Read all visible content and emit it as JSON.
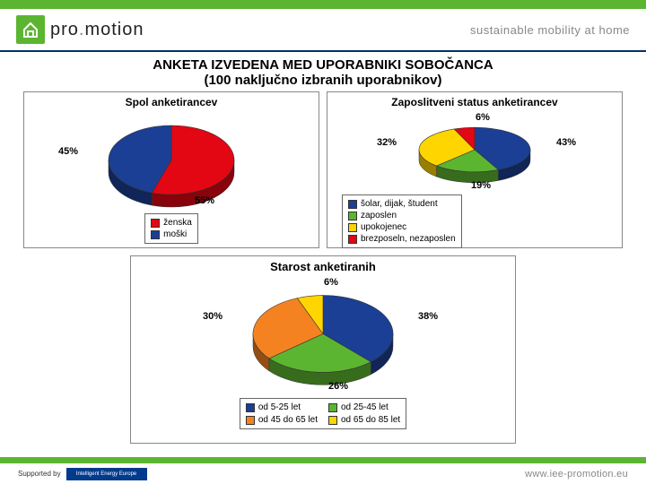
{
  "header": {
    "brand_pre": "pro",
    "brand_post": "motion",
    "tagline": "sustainable mobility at home",
    "logo_bg": "#5cb531"
  },
  "title": {
    "line1": "ANKETA IZVEDENA MED UPORABNIKI SOBOČANCA",
    "line2": "(100 naključno izbranih uporabnikov)"
  },
  "chart1": {
    "type": "pie",
    "title": "Spol anketirancev",
    "title_fontsize": 12,
    "background_color": "#ffffff",
    "slices": [
      {
        "label": "ženska",
        "value": 55,
        "color": "#e30613",
        "pct_label": "55%"
      },
      {
        "label": "moški",
        "value": 45,
        "color": "#1b3f94",
        "pct_label": "45%"
      }
    ],
    "tilt_ry_ratio": 0.55,
    "depth": 14,
    "radius": 70,
    "legend_border": "#666666"
  },
  "chart2": {
    "type": "pie",
    "title": "Zaposlitveni status anketirancev",
    "title_fontsize": 12,
    "background_color": "#ffffff",
    "slices": [
      {
        "label": "šolar, dijak, študent",
        "value": 43,
        "color": "#1b3f94",
        "pct_label": "43%"
      },
      {
        "label": "zaposlen",
        "value": 19,
        "color": "#5cb531",
        "pct_label": "19%"
      },
      {
        "label": "upokojenec",
        "value": 32,
        "color": "#ffd500",
        "pct_label": "32%"
      },
      {
        "label": "brezposeln, nezaposlen",
        "value": 6,
        "color": "#e30613",
        "pct_label": "6%"
      }
    ],
    "tilt_ry_ratio": 0.4,
    "depth": 12,
    "radius": 62,
    "legend_border": "#666666"
  },
  "chart3": {
    "type": "pie",
    "title": "Starost anketiranih",
    "title_fontsize": 13,
    "background_color": "#ffffff",
    "slices": [
      {
        "label": "od 5-25 let",
        "value": 38,
        "color": "#1b3f94",
        "pct_label": "38%"
      },
      {
        "label": "od 25-45 let",
        "value": 26,
        "color": "#5cb531",
        "pct_label": "26%"
      },
      {
        "label": "od 45 do 65 let",
        "value": 30,
        "color": "#f58220",
        "pct_label": "30%"
      },
      {
        "label": "od 65 do 85 let",
        "value": 6,
        "color": "#ffd500",
        "pct_label": "6%"
      }
    ],
    "tilt_ry_ratio": 0.55,
    "depth": 14,
    "radius": 78,
    "legend_border": "#666666",
    "legend_cols": 2
  },
  "footer": {
    "supported_label": "Supported by",
    "badge_text": "Intelligent Energy Europe",
    "url": "www.iee-promotion.eu"
  }
}
